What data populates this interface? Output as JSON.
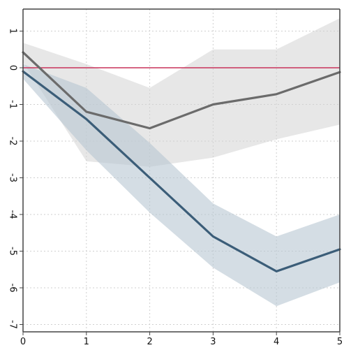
{
  "chart_data": {
    "type": "line",
    "title": "",
    "xlabel": "",
    "ylabel": "",
    "xlim": [
      0,
      5
    ],
    "ylim": [
      -7.2,
      1.6
    ],
    "grid": true,
    "x": [
      0,
      1,
      2,
      3,
      4,
      5
    ],
    "x_ticks": [
      "0",
      "1",
      "2",
      "3",
      "4",
      "5"
    ],
    "y_ticks": [
      1,
      0,
      -1,
      -2,
      -3,
      -4,
      -5,
      -6,
      -7
    ],
    "y_tick_labels": [
      "1",
      "0",
      "-1",
      "-2",
      "-3",
      "-4",
      "-5",
      "-6",
      "-7"
    ],
    "reference_line": {
      "y": 0,
      "color": "#c8325a"
    },
    "series": [
      {
        "color": "#6b6b6b",
        "band_color": "#d4d4d4",
        "values": [
          0.42,
          -1.2,
          -1.65,
          -1.0,
          -0.72,
          -0.12
        ],
        "lower": [
          0.15,
          -2.55,
          -2.7,
          -2.45,
          -1.95,
          -1.55
        ],
        "upper": [
          0.68,
          0.1,
          -0.55,
          0.5,
          0.5,
          1.35
        ]
      },
      {
        "color": "#3b5d78",
        "band_color": "#b8c7d2",
        "values": [
          -0.1,
          -1.4,
          -3.0,
          -4.6,
          -5.55,
          -4.95
        ],
        "lower": [
          -0.3,
          -2.25,
          -3.95,
          -5.45,
          -6.5,
          -5.85
        ],
        "upper": [
          0.1,
          -0.55,
          -2.05,
          -3.7,
          -4.6,
          -4.0
        ]
      }
    ]
  }
}
